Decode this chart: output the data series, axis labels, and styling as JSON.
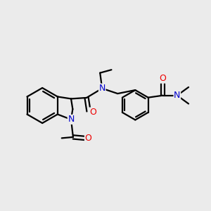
{
  "background_color": "#ebebeb",
  "atom_colors": {
    "N": "#0000cc",
    "O": "#ee0000"
  },
  "bond_lw": 1.6,
  "font_size": 8,
  "fig_size": [
    3.0,
    3.0
  ],
  "dpi": 100
}
